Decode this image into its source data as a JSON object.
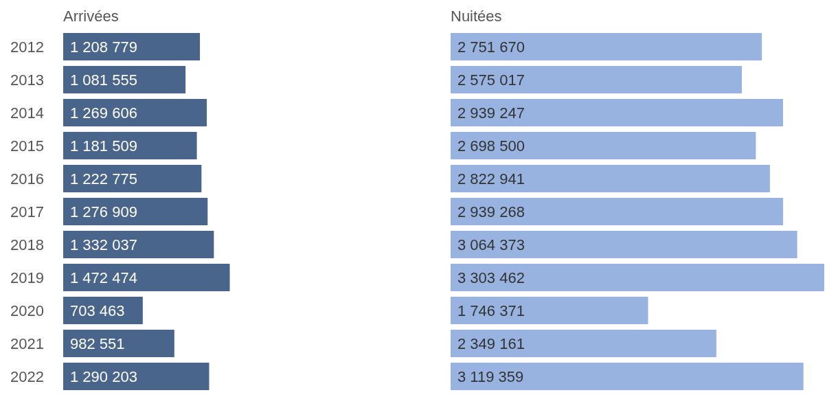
{
  "chart_data": [
    {
      "type": "bar",
      "orientation": "horizontal",
      "title": "Arrivées",
      "categories": [
        "2012",
        "2013",
        "2014",
        "2015",
        "2016",
        "2017",
        "2018",
        "2019",
        "2020",
        "2021",
        "2022"
      ],
      "values": [
        1208779,
        1081555,
        1269606,
        1181509,
        1222775,
        1276909,
        1332037,
        1472474,
        703463,
        982551,
        1290203
      ],
      "value_labels": [
        "1 208 779",
        "1 081 555",
        "1 269 606",
        "1 181 509",
        "1 222 775",
        "1 276 909",
        "1 332 037",
        "1 472 474",
        "703 463",
        "982 551",
        "1 290 203"
      ],
      "color": "#4a658c",
      "tick_labels": "y"
    },
    {
      "type": "bar",
      "orientation": "horizontal",
      "title": "Nuitées",
      "categories": [
        "2012",
        "2013",
        "2014",
        "2015",
        "2016",
        "2017",
        "2018",
        "2019",
        "2020",
        "2021",
        "2022"
      ],
      "values": [
        2751670,
        2575017,
        2939247,
        2698500,
        2822941,
        2939268,
        3064373,
        3303462,
        1746371,
        2349161,
        3119359
      ],
      "value_labels": [
        "2 751 670",
        "2 575 017",
        "2 939 247",
        "2 698 500",
        "2 822 941",
        "2 939 268",
        "3 064 373",
        "3 303 462",
        "1 746 371",
        "2 349 161",
        "3 119 359"
      ],
      "color": "#98b3e0",
      "tick_labels": false
    }
  ]
}
